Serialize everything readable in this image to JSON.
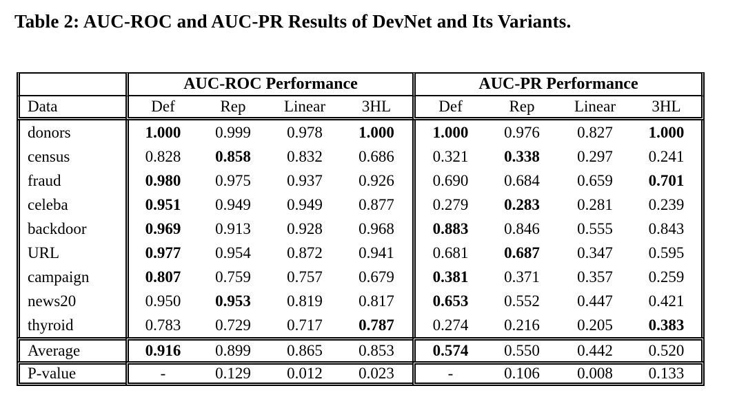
{
  "title": "Table 2: AUC-ROC and AUC-PR Results of DevNet and Its Variants.",
  "table": {
    "group_headers": [
      "AUC-ROC Performance",
      "AUC-PR Performance"
    ],
    "data_column_header": "Data",
    "sub_headers": [
      "Def",
      "Rep",
      "Linear",
      "3HL"
    ],
    "rows": [
      {
        "label": "donors",
        "cells": [
          {
            "v": "1.000",
            "b": true
          },
          {
            "v": "0.999"
          },
          {
            "v": "0.978"
          },
          {
            "v": "1.000",
            "b": true
          },
          {
            "v": "1.000",
            "b": true
          },
          {
            "v": "0.976"
          },
          {
            "v": "0.827"
          },
          {
            "v": "1.000",
            "b": true
          }
        ]
      },
      {
        "label": "census",
        "cells": [
          {
            "v": "0.828"
          },
          {
            "v": "0.858",
            "b": true
          },
          {
            "v": "0.832"
          },
          {
            "v": "0.686"
          },
          {
            "v": "0.321"
          },
          {
            "v": "0.338",
            "b": true
          },
          {
            "v": "0.297"
          },
          {
            "v": "0.241"
          }
        ]
      },
      {
        "label": "fraud",
        "cells": [
          {
            "v": "0.980",
            "b": true
          },
          {
            "v": "0.975"
          },
          {
            "v": "0.937"
          },
          {
            "v": "0.926"
          },
          {
            "v": "0.690"
          },
          {
            "v": "0.684"
          },
          {
            "v": "0.659"
          },
          {
            "v": "0.701",
            "b": true
          }
        ]
      },
      {
        "label": "celeba",
        "cells": [
          {
            "v": "0.951",
            "b": true
          },
          {
            "v": "0.949"
          },
          {
            "v": "0.949"
          },
          {
            "v": "0.877"
          },
          {
            "v": "0.279"
          },
          {
            "v": "0.283",
            "b": true
          },
          {
            "v": "0.281"
          },
          {
            "v": "0.239"
          }
        ]
      },
      {
        "label": "backdoor",
        "cells": [
          {
            "v": "0.969",
            "b": true
          },
          {
            "v": "0.913"
          },
          {
            "v": "0.928"
          },
          {
            "v": "0.968"
          },
          {
            "v": "0.883",
            "b": true
          },
          {
            "v": "0.846"
          },
          {
            "v": "0.555"
          },
          {
            "v": "0.843"
          }
        ]
      },
      {
        "label": "URL",
        "cells": [
          {
            "v": "0.977",
            "b": true
          },
          {
            "v": "0.954"
          },
          {
            "v": "0.872"
          },
          {
            "v": "0.941"
          },
          {
            "v": "0.681"
          },
          {
            "v": "0.687",
            "b": true
          },
          {
            "v": "0.347"
          },
          {
            "v": "0.595"
          }
        ]
      },
      {
        "label": "campaign",
        "cells": [
          {
            "v": "0.807",
            "b": true
          },
          {
            "v": "0.759"
          },
          {
            "v": "0.757"
          },
          {
            "v": "0.679"
          },
          {
            "v": "0.381",
            "b": true
          },
          {
            "v": "0.371"
          },
          {
            "v": "0.357"
          },
          {
            "v": "0.259"
          }
        ]
      },
      {
        "label": "news20",
        "cells": [
          {
            "v": "0.950"
          },
          {
            "v": "0.953",
            "b": true
          },
          {
            "v": "0.819"
          },
          {
            "v": "0.817"
          },
          {
            "v": "0.653",
            "b": true
          },
          {
            "v": "0.552"
          },
          {
            "v": "0.447"
          },
          {
            "v": "0.421"
          }
        ]
      },
      {
        "label": "thyroid",
        "cells": [
          {
            "v": "0.783"
          },
          {
            "v": "0.729"
          },
          {
            "v": "0.717"
          },
          {
            "v": "0.787",
            "b": true
          },
          {
            "v": "0.274"
          },
          {
            "v": "0.216"
          },
          {
            "v": "0.205"
          },
          {
            "v": "0.383",
            "b": true
          }
        ]
      }
    ],
    "average_row": {
      "label": "Average",
      "cells": [
        {
          "v": "0.916",
          "b": true
        },
        {
          "v": "0.899"
        },
        {
          "v": "0.865"
        },
        {
          "v": "0.853"
        },
        {
          "v": "0.574",
          "b": true
        },
        {
          "v": "0.550"
        },
        {
          "v": "0.442"
        },
        {
          "v": "0.520"
        }
      ]
    },
    "pvalue_row": {
      "label": "P-value",
      "cells": [
        {
          "v": "-"
        },
        {
          "v": "0.129"
        },
        {
          "v": "0.012"
        },
        {
          "v": "0.023"
        },
        {
          "v": "-"
        },
        {
          "v": "0.106"
        },
        {
          "v": "0.008"
        },
        {
          "v": "0.133"
        }
      ]
    }
  }
}
